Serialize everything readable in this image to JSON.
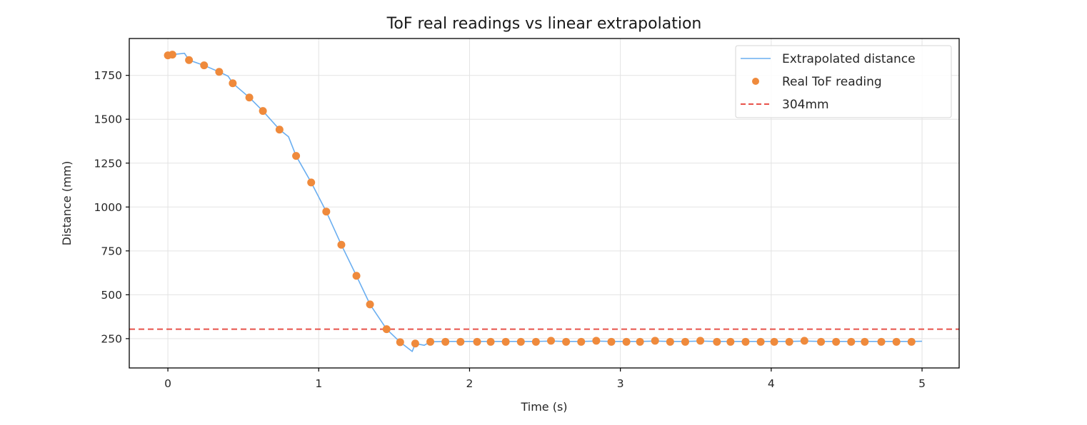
{
  "chart_data": {
    "type": "line",
    "title": "ToF real readings vs linear extrapolation",
    "xlabel": "Time (s)",
    "ylabel": "Distance (mm)",
    "xlim": [
      -0.256,
      5.246
    ],
    "ylim": [
      83,
      1960
    ],
    "xticks": [
      0,
      1,
      2,
      3,
      4,
      5
    ],
    "yticks": [
      250,
      500,
      750,
      1000,
      1250,
      1500,
      1750
    ],
    "grid": true,
    "legend_position": "upper right",
    "legend": [
      "Extrapolated distance",
      "Real ToF reading",
      "304mm"
    ],
    "colors": {
      "extrapolated": "#6aaef0",
      "real": "#ef8a3c",
      "threshold": "#e8524a"
    },
    "series": [
      {
        "name": "Extrapolated distance",
        "kind": "line",
        "x": [
          0.0,
          0.03,
          0.11,
          0.14,
          0.24,
          0.34,
          0.4,
          0.43,
          0.54,
          0.63,
          0.74,
          0.8,
          0.85,
          0.95,
          1.05,
          1.15,
          1.25,
          1.34,
          1.45,
          1.54,
          1.62,
          1.64,
          1.7,
          1.74,
          1.84,
          1.94,
          2.05,
          2.14,
          2.24,
          2.34,
          2.44,
          2.54,
          2.64,
          2.74,
          2.84,
          2.94,
          3.04,
          3.13,
          3.23,
          3.33,
          3.43,
          3.53,
          3.64,
          3.73,
          3.83,
          3.93,
          4.02,
          4.12,
          4.22,
          4.33,
          4.43,
          4.53,
          4.62,
          4.73,
          4.83,
          4.93,
          5.0
        ],
        "y": [
          1864,
          1868,
          1876,
          1837,
          1807,
          1770,
          1745,
          1705,
          1624,
          1547,
          1441,
          1400,
          1291,
          1140,
          974,
          785,
          608,
          445,
          304,
          230,
          177,
          222,
          212,
          232,
          234,
          234,
          234,
          234,
          234,
          234,
          234,
          236,
          234,
          234,
          236,
          234,
          234,
          234,
          236,
          234,
          234,
          236,
          234,
          234,
          234,
          234,
          234,
          234,
          236,
          234,
          234,
          234,
          234,
          234,
          234,
          234,
          235
        ]
      },
      {
        "name": "Real ToF reading",
        "kind": "scatter",
        "x": [
          0.0,
          0.03,
          0.14,
          0.24,
          0.34,
          0.43,
          0.54,
          0.63,
          0.74,
          0.85,
          0.95,
          1.05,
          1.15,
          1.25,
          1.34,
          1.45,
          1.54,
          1.64,
          1.74,
          1.84,
          1.94,
          2.05,
          2.14,
          2.24,
          2.34,
          2.44,
          2.54,
          2.64,
          2.74,
          2.84,
          2.94,
          3.04,
          3.13,
          3.23,
          3.33,
          3.43,
          3.53,
          3.64,
          3.73,
          3.83,
          3.93,
          4.02,
          4.12,
          4.22,
          4.33,
          4.43,
          4.53,
          4.62,
          4.73,
          4.83,
          4.93
        ],
        "y": [
          1864,
          1868,
          1837,
          1807,
          1770,
          1705,
          1624,
          1547,
          1441,
          1291,
          1140,
          974,
          785,
          608,
          445,
          304,
          230,
          222,
          232,
          232,
          232,
          232,
          232,
          232,
          232,
          232,
          238,
          232,
          232,
          238,
          232,
          232,
          232,
          238,
          232,
          232,
          238,
          232,
          232,
          232,
          232,
          232,
          232,
          238,
          232,
          232,
          232,
          232,
          232,
          232,
          232
        ]
      },
      {
        "name": "304mm",
        "kind": "hline",
        "y": 304
      }
    ]
  }
}
